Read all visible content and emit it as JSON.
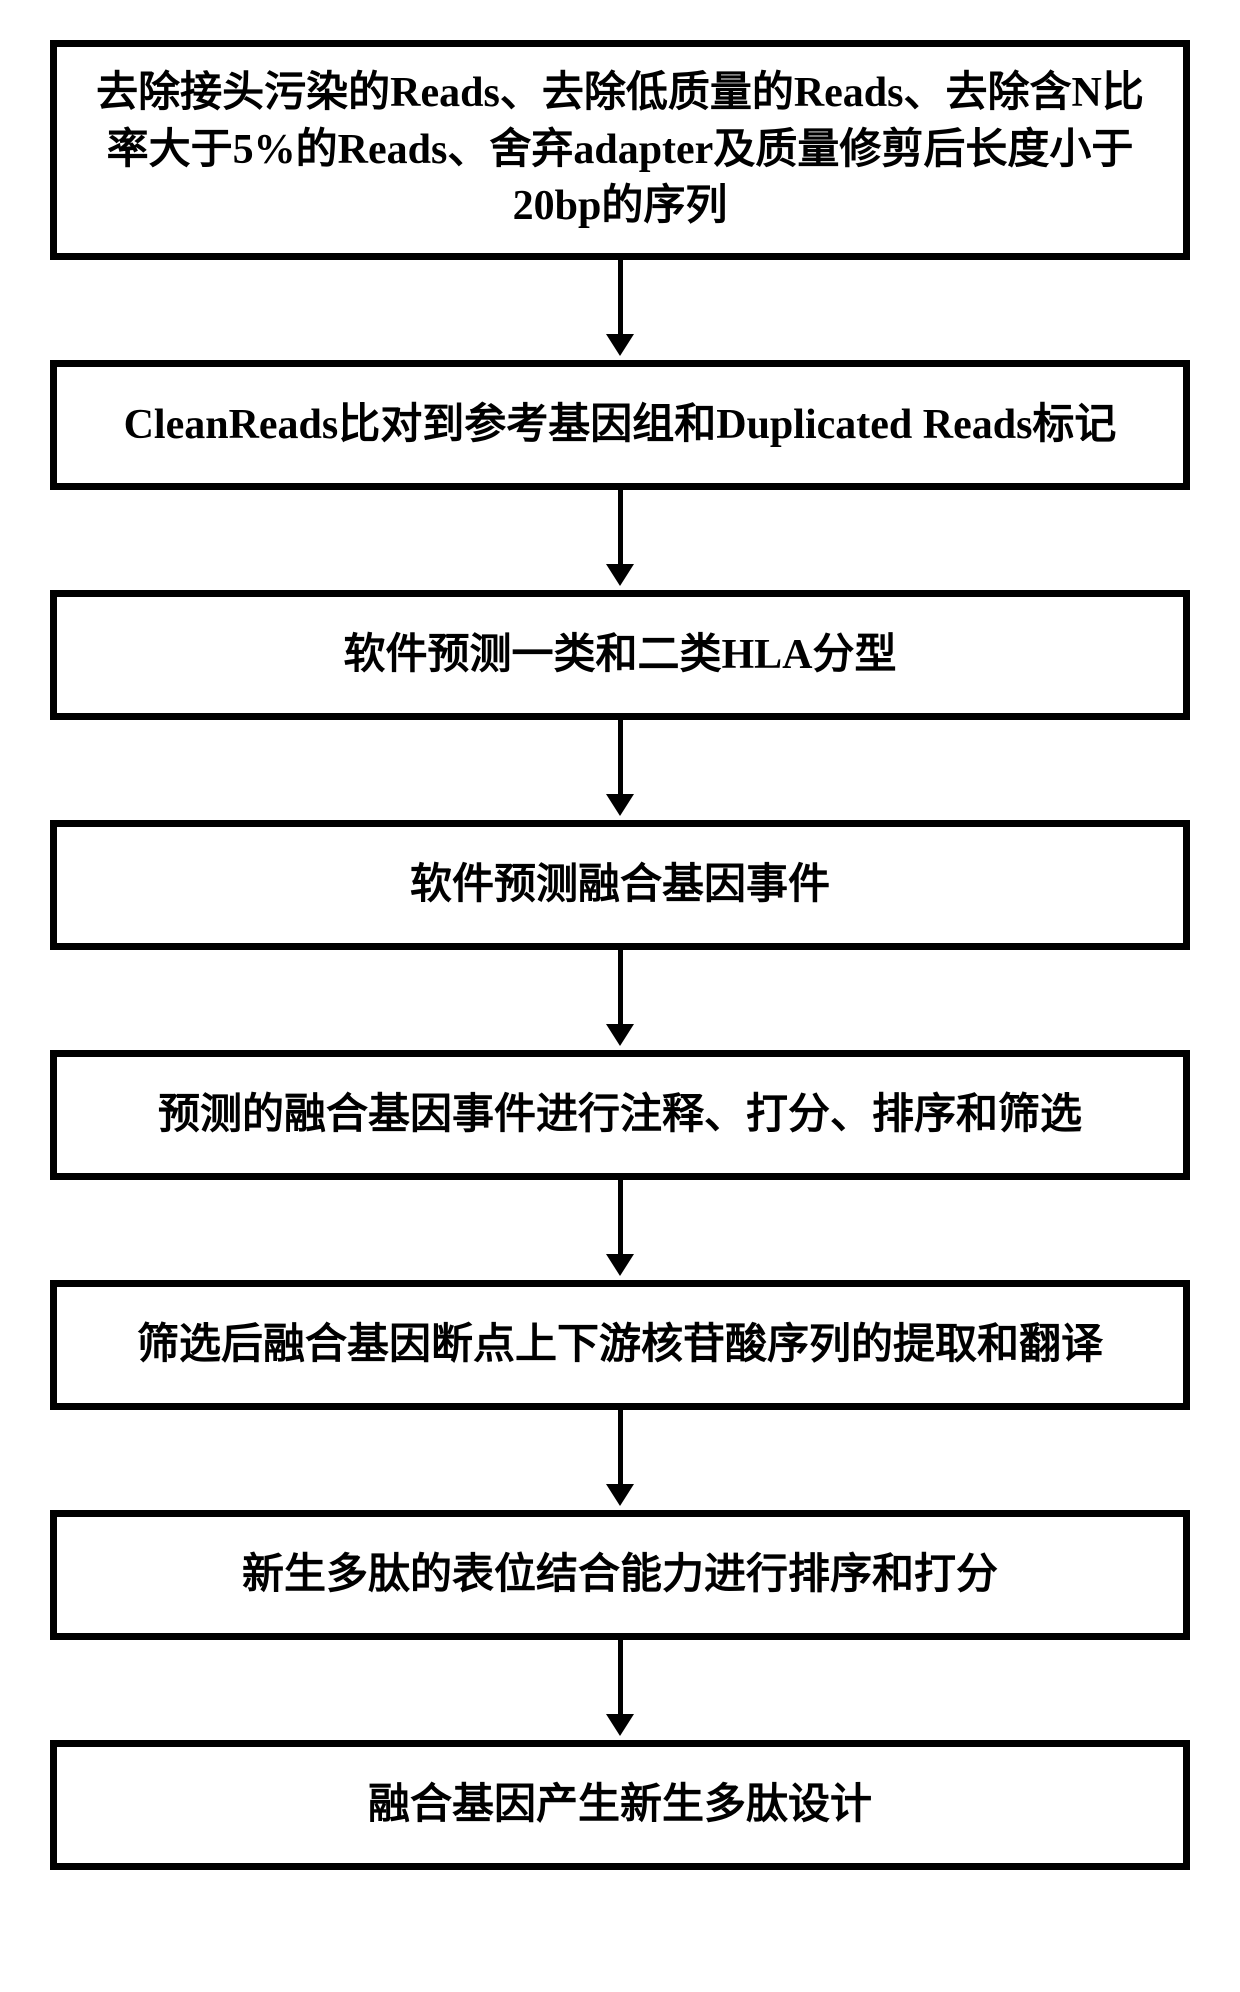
{
  "flowchart": {
    "type": "flowchart",
    "direction": "vertical",
    "background_color": "#ffffff",
    "box_border_color": "#000000",
    "box_border_width": 7,
    "box_fill": "#ffffff",
    "arrow_color": "#000000",
    "arrow_line_width": 5,
    "font_family": "SimSun",
    "font_weight": "bold",
    "font_size_pt": 32,
    "nodes": [
      {
        "id": "n1",
        "text": "去除接头污染的Reads、去除低质量的Reads、去除含N比率大于5%的Reads、舍弃adapter及质量修剪后长度小于20bp的序列",
        "height": "tall"
      },
      {
        "id": "n2",
        "text": "CleanReads比对到参考基因组和Duplicated Reads标记",
        "height": "normal"
      },
      {
        "id": "n3",
        "text": "软件预测一类和二类HLA分型",
        "height": "normal"
      },
      {
        "id": "n4",
        "text": "软件预测融合基因事件",
        "height": "normal"
      },
      {
        "id": "n5",
        "text": "预测的融合基因事件进行注释、打分、排序和筛选",
        "height": "normal"
      },
      {
        "id": "n6",
        "text": "筛选后融合基因断点上下游核苷酸序列的提取和翻译",
        "height": "normal"
      },
      {
        "id": "n7",
        "text": "新生多肽的表位结合能力进行排序和打分",
        "height": "normal"
      },
      {
        "id": "n8",
        "text": "融合基因产生新生多肽设计",
        "height": "normal"
      }
    ],
    "edges": [
      {
        "from": "n1",
        "to": "n2"
      },
      {
        "from": "n2",
        "to": "n3"
      },
      {
        "from": "n3",
        "to": "n4"
      },
      {
        "from": "n4",
        "to": "n5"
      },
      {
        "from": "n5",
        "to": "n6"
      },
      {
        "from": "n6",
        "to": "n7"
      },
      {
        "from": "n7",
        "to": "n8"
      }
    ]
  }
}
